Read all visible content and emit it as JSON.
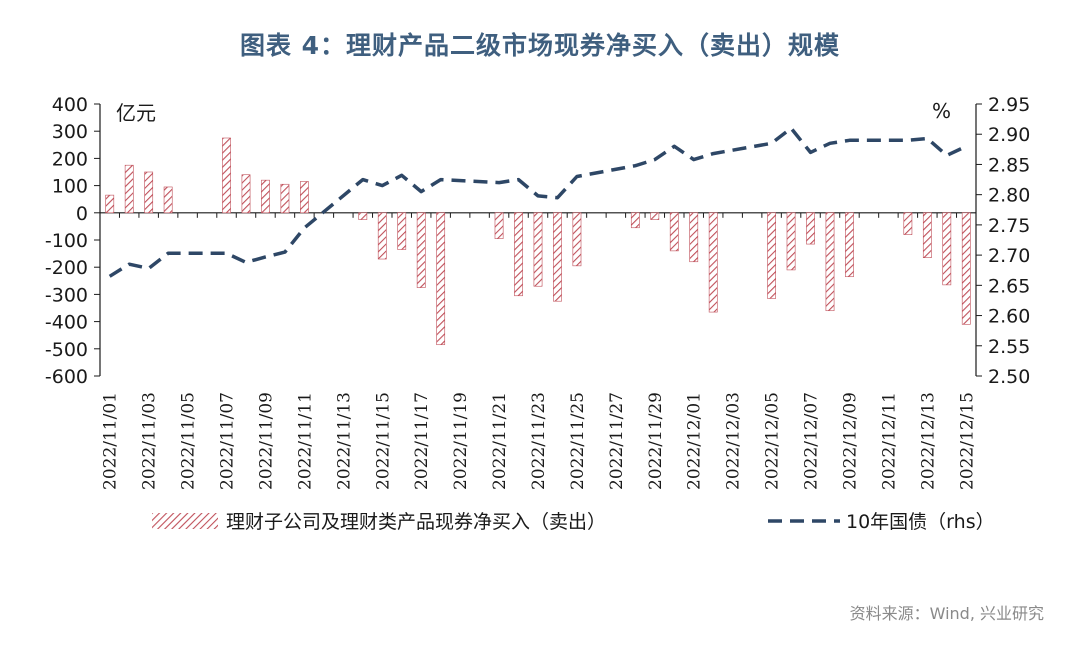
{
  "title": "图表 4：理财产品二级市场现券净买入（卖出）规模",
  "source": "资料来源：Wind, 兴业研究",
  "chart_data": {
    "type": "bar+line",
    "left_unit": "亿元",
    "right_unit": "%",
    "ylim_left": [
      -600,
      400
    ],
    "ylim_right": [
      2.5,
      2.95
    ],
    "left_ticks": [
      "400",
      "300",
      "200",
      "100",
      "0",
      "-100",
      "-200",
      "-300",
      "-400",
      "-500",
      "-600"
    ],
    "right_ticks": [
      "2.95",
      "2.90",
      "2.85",
      "2.80",
      "2.75",
      "2.70",
      "2.65",
      "2.60",
      "2.55",
      "2.50"
    ],
    "x_labels": [
      "2022/11/01",
      "2022/11/03",
      "2022/11/05",
      "2022/11/07",
      "2022/11/09",
      "2022/11/11",
      "2022/11/13",
      "2022/11/15",
      "2022/11/17",
      "2022/11/19",
      "2022/11/21",
      "2022/11/23",
      "2022/11/25",
      "2022/11/27",
      "2022/11/29",
      "2022/12/01",
      "2022/12/03",
      "2022/12/05",
      "2022/12/07",
      "2022/12/09",
      "2022/12/11",
      "2022/12/13",
      "2022/12/15"
    ],
    "series": [
      {
        "name": "理财子公司及理财类产品现券净买入（卖出）",
        "kind": "bar",
        "color": "#c0505a",
        "points": [
          {
            "x": "2022/11/01",
            "v": 65
          },
          {
            "x": "2022/11/02",
            "v": 175
          },
          {
            "x": "2022/11/03",
            "v": 150
          },
          {
            "x": "2022/11/04",
            "v": 95
          },
          {
            "x": "2022/11/07",
            "v": 275
          },
          {
            "x": "2022/11/08",
            "v": 140
          },
          {
            "x": "2022/11/09",
            "v": 120
          },
          {
            "x": "2022/11/10",
            "v": 105
          },
          {
            "x": "2022/11/11",
            "v": 115
          },
          {
            "x": "2022/11/14",
            "v": -25
          },
          {
            "x": "2022/11/15",
            "v": -170
          },
          {
            "x": "2022/11/16",
            "v": -135
          },
          {
            "x": "2022/11/17",
            "v": -275
          },
          {
            "x": "2022/11/18",
            "v": -485
          },
          {
            "x": "2022/11/21",
            "v": -95
          },
          {
            "x": "2022/11/22",
            "v": -305
          },
          {
            "x": "2022/11/23",
            "v": -270
          },
          {
            "x": "2022/11/24",
            "v": -325
          },
          {
            "x": "2022/11/25",
            "v": -195
          },
          {
            "x": "2022/11/28",
            "v": -55
          },
          {
            "x": "2022/11/29",
            "v": -25
          },
          {
            "x": "2022/11/30",
            "v": -140
          },
          {
            "x": "2022/12/01",
            "v": -180
          },
          {
            "x": "2022/12/02",
            "v": -365
          },
          {
            "x": "2022/12/05",
            "v": -315
          },
          {
            "x": "2022/12/06",
            "v": -210
          },
          {
            "x": "2022/12/07",
            "v": -115
          },
          {
            "x": "2022/12/08",
            "v": -360
          },
          {
            "x": "2022/12/09",
            "v": -235
          },
          {
            "x": "2022/12/12",
            "v": -80
          },
          {
            "x": "2022/12/13",
            "v": -165
          },
          {
            "x": "2022/12/14",
            "v": -265
          },
          {
            "x": "2022/12/15",
            "v": -410
          }
        ]
      },
      {
        "name": "10年国债（rhs）",
        "kind": "line",
        "color": "#2e4766",
        "dash": "dashed",
        "points": [
          {
            "x": "2022/11/01",
            "v": 2.665
          },
          {
            "x": "2022/11/02",
            "v": 2.685
          },
          {
            "x": "2022/11/03",
            "v": 2.678
          },
          {
            "x": "2022/11/04",
            "v": 2.703
          },
          {
            "x": "2022/11/07",
            "v": 2.703
          },
          {
            "x": "2022/11/08",
            "v": 2.688
          },
          {
            "x": "2022/11/09",
            "v": 2.697
          },
          {
            "x": "2022/11/10",
            "v": 2.705
          },
          {
            "x": "2022/11/11",
            "v": 2.745
          },
          {
            "x": "2022/11/14",
            "v": 2.825
          },
          {
            "x": "2022/11/15",
            "v": 2.815
          },
          {
            "x": "2022/11/16",
            "v": 2.832
          },
          {
            "x": "2022/11/17",
            "v": 2.805
          },
          {
            "x": "2022/11/18",
            "v": 2.825
          },
          {
            "x": "2022/11/21",
            "v": 2.82
          },
          {
            "x": "2022/11/22",
            "v": 2.825
          },
          {
            "x": "2022/11/23",
            "v": 2.798
          },
          {
            "x": "2022/11/24",
            "v": 2.795
          },
          {
            "x": "2022/11/25",
            "v": 2.83
          },
          {
            "x": "2022/11/28",
            "v": 2.848
          },
          {
            "x": "2022/11/29",
            "v": 2.858
          },
          {
            "x": "2022/11/30",
            "v": 2.88
          },
          {
            "x": "2022/12/01",
            "v": 2.858
          },
          {
            "x": "2022/12/02",
            "v": 2.868
          },
          {
            "x": "2022/12/05",
            "v": 2.885
          },
          {
            "x": "2022/12/06",
            "v": 2.91
          },
          {
            "x": "2022/12/07",
            "v": 2.87
          },
          {
            "x": "2022/12/08",
            "v": 2.885
          },
          {
            "x": "2022/12/09",
            "v": 2.89
          },
          {
            "x": "2022/12/12",
            "v": 2.89
          },
          {
            "x": "2022/12/13",
            "v": 2.893
          },
          {
            "x": "2022/12/14",
            "v": 2.865
          },
          {
            "x": "2022/12/15",
            "v": 2.88
          }
        ]
      }
    ]
  }
}
